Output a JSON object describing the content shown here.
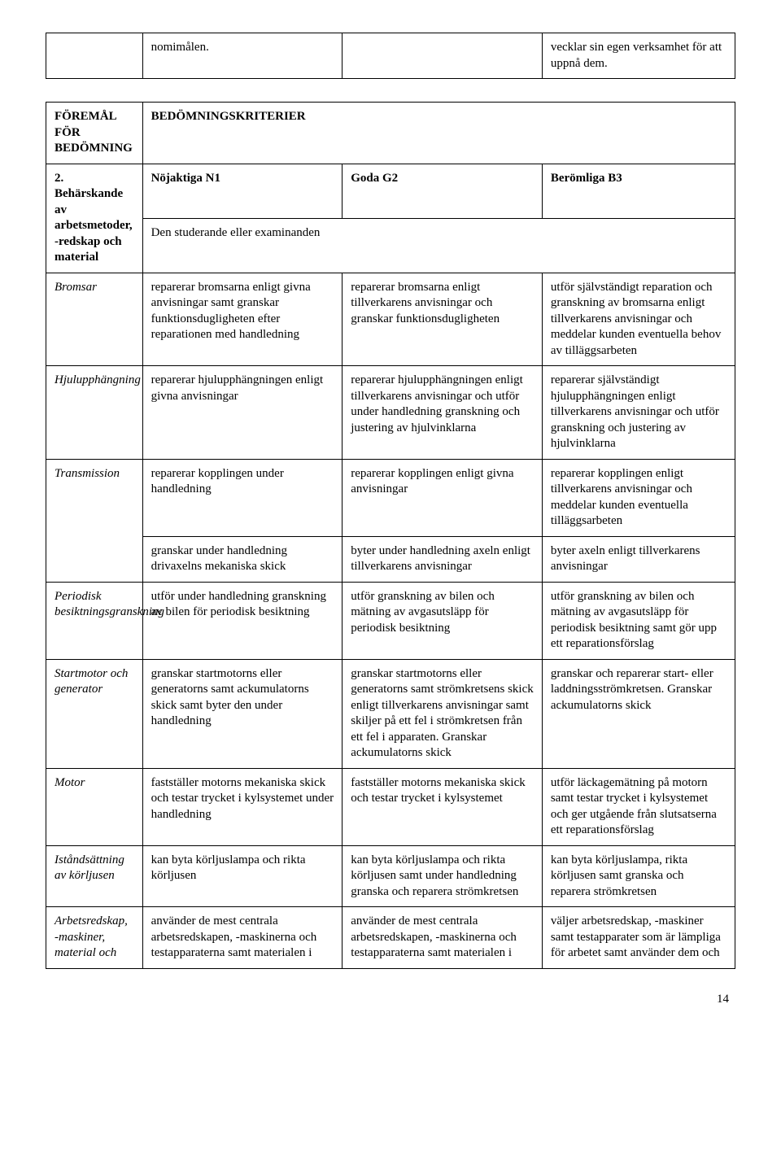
{
  "topRow": {
    "c1": "",
    "c2": "nomimålen.",
    "c3": "",
    "c4": "vecklar sin egen verksamhet för att uppnå dem."
  },
  "header": {
    "label": "FÖREMÅL FÖR BEDÖMNING",
    "criteria": "BEDÖMNINGSKRITERIER"
  },
  "subject": {
    "label": "2. Behärskande av arbetsmetoder, -redskap och material",
    "n1": "Nöjaktiga N1",
    "g2": "Goda G2",
    "b3": "Berömliga B3",
    "subtitle": "Den studerande eller examinanden"
  },
  "rows": [
    {
      "label": "Bromsar",
      "n1": "reparerar bromsarna enligt givna anvisningar samt granskar funktionsdugligheten efter reparationen med handledning",
      "g2": "reparerar bromsarna enligt tillverkarens anvisningar och granskar funktionsdugligheten",
      "b3": "utför självständigt reparation och granskning av bromsarna enligt tillverkarens anvisningar och meddelar kunden eventuella behov av tilläggsarbeten"
    },
    {
      "label": "Hjulupphängning",
      "n1": "reparerar hjulupphängningen enligt givna anvisningar",
      "g2": "reparerar hjulupphängningen enligt tillverkarens anvisningar och utför under handledning granskning och justering av hjulvinklarna",
      "b3": "reparerar självständigt hjulupphängningen enligt tillverkarens anvisningar och utför granskning och justering av hjulvinklarna"
    },
    {
      "label": "Transmission",
      "n1": "reparerar kopplingen under handledning",
      "g2": "reparerar kopplingen enligt givna anvisningar",
      "b3": "reparerar kopplingen enligt tillverkarens anvisningar och meddelar kunden eventuella tilläggsarbeten"
    },
    {
      "label": "",
      "n1": "granskar under handledning drivaxelns mekaniska skick",
      "g2": "byter under handledning axeln enligt tillverkarens anvisningar",
      "b3": "byter axeln enligt tillverkarens anvisningar"
    },
    {
      "label": "Periodisk besiktningsgranskning",
      "n1": "utför under handledning granskning av bilen för periodisk besiktning",
      "g2": "utför granskning av bilen och mätning av avgasutsläpp för periodisk besiktning",
      "b3": "utför granskning av bilen och mätning av avgasutsläpp för periodisk besiktning samt gör upp ett reparationsförslag"
    },
    {
      "label": "Startmotor och generator",
      "n1": "granskar startmotorns eller generatorns samt ackumulatorns skick samt byter den under handledning",
      "g2": "granskar startmotorns eller generatorns samt strömkretsens skick enligt tillverkarens anvisningar samt skiljer på ett fel i strömkretsen från ett fel i apparaten. Granskar ackumulatorns skick",
      "b3": "granskar och reparerar start- eller laddningsströmkretsen. Granskar ackumulatorns skick"
    },
    {
      "label": "Motor",
      "n1": "fastställer motorns mekaniska skick och testar trycket i kylsystemet under handledning",
      "g2": "fastställer motorns mekaniska skick och testar trycket i kylsystemet",
      "b3": "utför läckagemätning på motorn samt testar trycket i kylsystemet och ger utgående från slutsatserna ett reparationsförslag"
    },
    {
      "label": "Iståndsättning av körljusen",
      "n1": "kan byta körljuslampa och rikta körljusen",
      "g2": "kan byta körljuslampa och rikta körljusen samt under handledning granska och reparera strömkretsen",
      "b3": "kan byta körljuslampa, rikta körljusen samt granska och reparera strömkretsen"
    },
    {
      "label": "Arbetsredskap, -maskiner, material och",
      "n1": "använder de mest centrala arbetsredskapen, -maskinerna och testapparaterna samt materialen i",
      "g2": "använder de mest centrala arbetsredskapen, -maskinerna och testapparaterna samt materialen i",
      "b3": "väljer arbetsredskap, -maskiner samt testapparater som är lämpliga för arbetet samt använder dem och"
    }
  ],
  "pageNumber": "14"
}
